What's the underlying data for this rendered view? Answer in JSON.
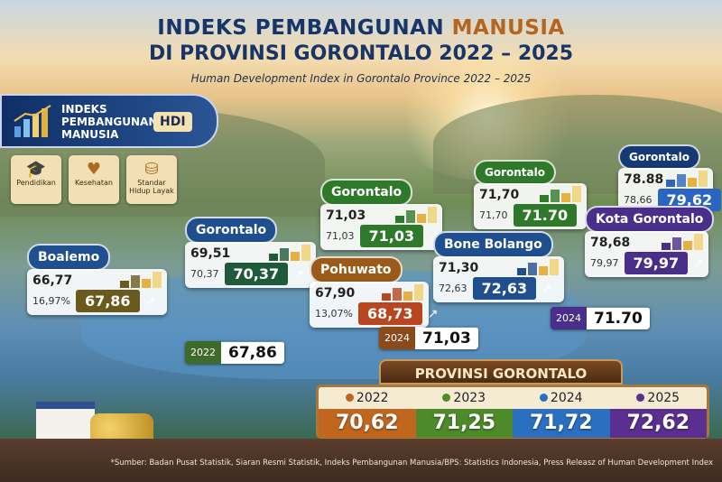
{
  "header": {
    "title_part1": "INDEKS PEMBANGUNAN ",
    "title_part2": "MANUSIA",
    "title_line2": "DI PROVINSI GORONTALO 2022 – 2025",
    "subtitle": "Human Development Index in Gorontalo Province 2022 – 2025"
  },
  "hdi_panel": {
    "label": "INDEKS PEMBANGUNAN MANUSIA",
    "badge": "HDI"
  },
  "indicators": [
    {
      "label": "Pendidikan",
      "icon": "graduation-cap-icon"
    },
    {
      "label": "Kesehatan",
      "icon": "heart-icon"
    },
    {
      "label": "Standar Hidup Layak",
      "icon": "coins-person-icon"
    }
  ],
  "regions": [
    {
      "name": "Boalemo",
      "value_a": "66,77",
      "value_b": "16,97%",
      "value_main": "67,86",
      "color": "#1f4f8f",
      "accent": "#6b5a1e"
    },
    {
      "name": "Gorontalo",
      "value_a": "69,51",
      "value_b": "70,37",
      "value_main": "70,37",
      "color": "#1f4f8f",
      "accent": "#1f5a3a"
    },
    {
      "name": "Gorontalo",
      "value_a": "71,03",
      "value_b": "71,03",
      "value_main": "71,03",
      "color": "#2f7a2a",
      "accent": "#2f7a2a"
    },
    {
      "name": "Pohuwato",
      "value_a": "67,90",
      "value_b": "13,07%",
      "value_main": "68,73",
      "color": "#9a5a1a",
      "accent": "#b8461e"
    },
    {
      "name": "Gorontalo",
      "value_a": "71,70",
      "value_b": "71,70",
      "value_main": "71.70",
      "color": "#2f7a2a",
      "accent": "#2f7a2a"
    },
    {
      "name": "Bone Bolango",
      "value_a": "71,30",
      "value_b": "72,63",
      "value_main": "72,63",
      "color": "#1f4f8f",
      "accent": "#1f4f8f"
    },
    {
      "name": "Gorontalo",
      "value_a": "78.88",
      "value_b": "78,66",
      "value_main": "79,62",
      "color": "#163a73",
      "accent": "#2a66c0"
    },
    {
      "name": "Kota Gorontalo",
      "value_a": "78,68",
      "value_b": "79,97",
      "value_main": "79,97",
      "color": "#4a2f8a",
      "accent": "#4a2f8a"
    }
  ],
  "map_pills": [
    {
      "year": "2022",
      "value": "67,86",
      "color": "#3f6b2a"
    },
    {
      "year": "2024",
      "value": "71,03",
      "color": "#8a4a1a"
    },
    {
      "year": "2024",
      "value": "71.70",
      "color": "#4a2f8a"
    }
  ],
  "province": {
    "title": "PROVINSI GORONTALO",
    "years": [
      {
        "year": "2022",
        "value": "70,62",
        "color": "#c0661e"
      },
      {
        "year": "2023",
        "value": "71,25",
        "color": "#4c8a2a"
      },
      {
        "year": "2024",
        "value": "71,72",
        "color": "#2a6fc0"
      },
      {
        "year": "2025",
        "value": "72,62",
        "color": "#5a2f8f"
      }
    ]
  },
  "source": "*Sumber: Badan Pusat Statistik, Siaran Resmi Statistik, Indeks Pembangunan Manusia/BPS: Statistics Indonesia, Press Releasz of Human Development Index"
}
